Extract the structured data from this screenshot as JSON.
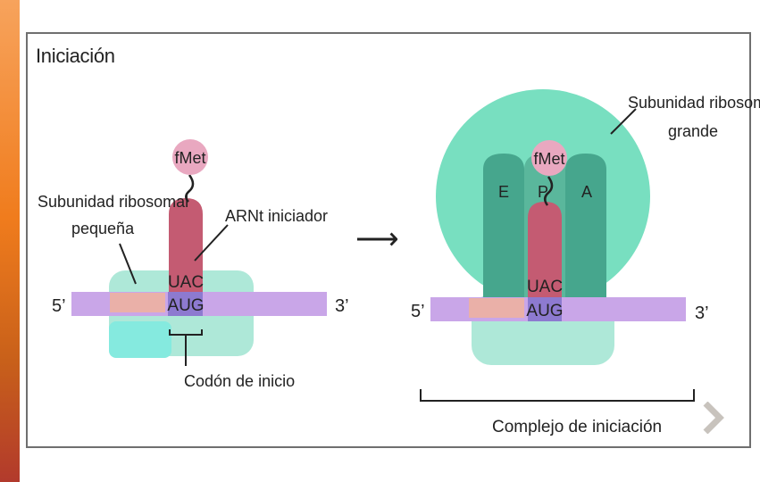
{
  "title": "Iniciación",
  "left": {
    "fmet": "fMet",
    "trna_label": "ARNt iniciador",
    "small_subunit_label_l1": "Subunidad ribosomal",
    "small_subunit_label_l2": "pequeña",
    "anticodon": "UAC",
    "codon": "AUG",
    "end5": "5’",
    "end3": "3’",
    "start_codon_label": "Codón de inicio"
  },
  "right": {
    "large_subunit_label_l1": "Subunidad ribosomal",
    "large_subunit_label_l2": "grande",
    "fmet": "fMet",
    "site_e": "E",
    "site_p": "P",
    "site_a": "A",
    "anticodon": "UAC",
    "codon": "AUG",
    "end5": "5’",
    "end3": "3’",
    "complex_label": "Complejo de iniciación"
  },
  "arrow": "⟶",
  "colors": {
    "mrna": "#c9a6e8",
    "small_subunit": "#aee8d8",
    "small_subunit_dark": "#85eadf",
    "large_subunit": "#78dfc0",
    "site_column": "#46a68d",
    "trna": "#c45b72",
    "fmet": "#e9a8c0",
    "cap": "#eab0a8",
    "codon_box": "#8d7ad0"
  },
  "icons": {
    "next": "chevron-right-icon"
  }
}
